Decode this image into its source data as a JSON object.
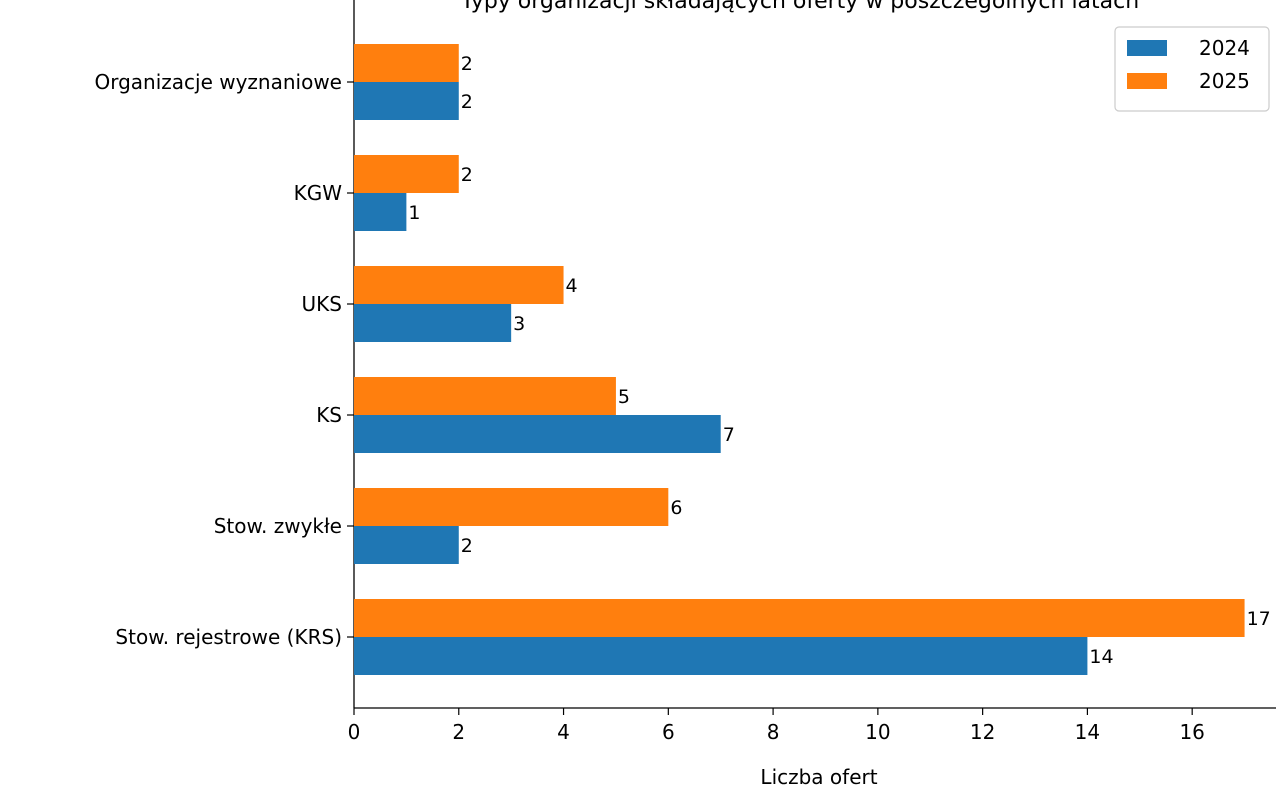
{
  "chart_data": {
    "type": "bar",
    "orientation": "horizontal",
    "title": "Typy organizacji składających oferty w poszczególnych latach",
    "xlabel": "Liczba ofert",
    "ylabel": "",
    "xlim": [
      0,
      17.6
    ],
    "xticks": [
      0,
      2,
      4,
      6,
      8,
      10,
      12,
      14,
      16
    ],
    "grid": false,
    "legend_position": "top-right",
    "categories": [
      "Stow. rejestrowe (KRS)",
      "Stow. zwykłe",
      "KS",
      "UKS",
      "KGW",
      "Organizacje wyznaniowe"
    ],
    "series": [
      {
        "name": "2024",
        "color": "#1f77b4",
        "values": [
          14,
          2,
          7,
          3,
          1,
          2
        ]
      },
      {
        "name": "2025",
        "color": "#ff7f0e",
        "values": [
          17,
          6,
          5,
          4,
          2,
          2
        ]
      }
    ]
  }
}
